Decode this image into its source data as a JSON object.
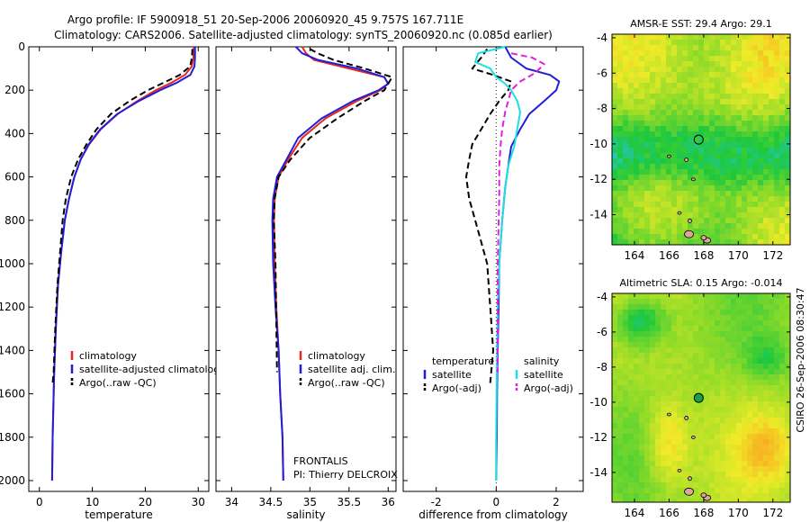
{
  "header": {
    "line1": "Argo profile: IF 5900918_51 20-Sep-2006 20060920_45 9.757S 167.711E",
    "line2": "Climatology: CARS2006. Satellite-adjusted climatology: synTS_20060920.nc (0.085d earlier)"
  },
  "credit": "CSIRO 26-Sep-2006 08:30:47",
  "colors": {
    "red": "#e8281e",
    "blue": "#1f1fd8",
    "black": "#000000",
    "cyan": "#1ee0e0",
    "magenta": "#e020e0"
  },
  "chart_data": [
    {
      "type": "line",
      "xlabel": "temperature",
      "ylabel": "",
      "xlim": [
        -2,
        32
      ],
      "ylim": [
        0,
        2050
      ],
      "y_reversed": true,
      "xticks": [
        0,
        10,
        20,
        30
      ],
      "yticks": [
        0,
        200,
        400,
        600,
        800,
        1000,
        1200,
        1400,
        1600,
        1800,
        2000
      ],
      "legend": {
        "position": "bottom-left",
        "entries": [
          "climatology",
          "satellite-adjusted climatology",
          "Argo(..raw -QC)"
        ]
      },
      "series": [
        {
          "name": "climatology",
          "color": "red",
          "dash": "solid",
          "x": [
            29.2,
            29.1,
            28.8,
            27.5,
            25.0,
            22.0,
            18.5,
            14.8,
            11.6,
            9.4,
            7.8,
            6.6,
            5.6,
            4.8,
            4.1,
            3.5,
            3.1,
            2.8,
            2.5,
            2.4
          ],
          "y": [
            0,
            50,
            90,
            130,
            165,
            200,
            250,
            310,
            380,
            450,
            520,
            600,
            700,
            800,
            950,
            1100,
            1300,
            1500,
            1800,
            2000
          ]
        },
        {
          "name": "satellite-adjusted climatology",
          "color": "blue",
          "dash": "solid",
          "x": [
            29.4,
            29.4,
            29.3,
            28.5,
            26.0,
            22.8,
            18.8,
            14.7,
            11.5,
            9.3,
            7.8,
            6.6,
            5.6,
            4.8,
            4.1,
            3.5,
            3.1,
            2.8,
            2.5,
            2.4
          ],
          "y": [
            0,
            50,
            90,
            130,
            165,
            200,
            250,
            310,
            380,
            450,
            520,
            600,
            700,
            800,
            950,
            1100,
            1300,
            1500,
            1800,
            2000
          ]
        },
        {
          "name": "Argo(..raw -QC)",
          "color": "black",
          "dash": "dash",
          "x": [
            28.9,
            28.8,
            28.5,
            26.5,
            23.5,
            20.5,
            17.0,
            13.5,
            10.8,
            8.9,
            7.3,
            6.0,
            5.0,
            4.4,
            3.9,
            3.4,
            3.0,
            2.7,
            2.5
          ],
          "y": [
            10,
            50,
            90,
            130,
            165,
            200,
            250,
            310,
            380,
            450,
            520,
            600,
            700,
            800,
            950,
            1100,
            1300,
            1500,
            1550
          ]
        }
      ]
    },
    {
      "type": "line",
      "xlabel": "salinity",
      "ylabel": "",
      "xlim": [
        33.8,
        36.1
      ],
      "ylim": [
        0,
        2050
      ],
      "y_reversed": true,
      "xticks": [
        34,
        34.5,
        35,
        35.5,
        36
      ],
      "tick_labels": [
        "34",
        "34.5",
        "35",
        "35.5",
        "36"
      ],
      "legend": {
        "position": "bottom-right",
        "entries": [
          "climatology",
          "satellite adj. clim.",
          "Argo(..raw -QC)"
        ]
      },
      "annotation": {
        "line1": "FRONTALIS",
        "line2": "PI: Thierry DELCROIX"
      },
      "series": [
        {
          "name": "climatology",
          "color": "red",
          "dash": "solid",
          "x": [
            34.9,
            34.95,
            35.05,
            35.5,
            35.95,
            36.0,
            35.9,
            35.6,
            35.2,
            34.9,
            34.72,
            34.6,
            34.55,
            34.54,
            34.55,
            34.57,
            34.6,
            34.62,
            34.65,
            34.66
          ],
          "y": [
            0,
            30,
            60,
            100,
            140,
            170,
            200,
            250,
            330,
            420,
            520,
            600,
            700,
            800,
            1000,
            1200,
            1400,
            1600,
            1800,
            2000
          ]
        },
        {
          "name": "satellite adj. clim.",
          "color": "blue",
          "dash": "solid",
          "x": [
            34.82,
            34.9,
            35.1,
            35.6,
            35.95,
            36.0,
            35.88,
            35.55,
            35.15,
            34.85,
            34.7,
            34.58,
            34.53,
            34.52,
            34.53,
            34.56,
            34.6,
            34.62,
            34.65,
            34.66
          ],
          "y": [
            0,
            30,
            60,
            100,
            140,
            170,
            200,
            250,
            330,
            420,
            520,
            600,
            700,
            800,
            1000,
            1200,
            1400,
            1600,
            1800,
            2000
          ]
        },
        {
          "name": "Argo(..raw -QC)",
          "color": "black",
          "dash": "dash",
          "x": [
            35.0,
            35.1,
            35.3,
            35.7,
            36.05,
            36.0,
            35.95,
            35.7,
            35.35,
            35.0,
            34.75,
            34.6,
            34.55,
            34.54,
            34.56,
            34.58
          ],
          "y": [
            10,
            30,
            60,
            100,
            140,
            170,
            200,
            250,
            330,
            420,
            520,
            600,
            700,
            800,
            1000,
            1500
          ]
        }
      ]
    },
    {
      "type": "line",
      "xlabel": "difference from climatology",
      "ylabel": "",
      "xlim": [
        -3.1,
        2.9
      ],
      "ylim": [
        0,
        2050
      ],
      "y_reversed": true,
      "xticks": [
        -2,
        0,
        2
      ],
      "legend": {
        "position": "bottom",
        "entries": [
          "temperature",
          "satellite",
          "Argo(-adj)",
          "salinity",
          "satellite",
          "Argo(-adj)"
        ]
      },
      "series": [
        {
          "name": "satellite",
          "group": "temperature",
          "color": "blue",
          "dash": "solid",
          "x": [
            0.3,
            0.5,
            1.0,
            1.8,
            2.1,
            2.0,
            1.6,
            1.1,
            0.8,
            0.5,
            0.4,
            0.3,
            0.2,
            0.1,
            0.08,
            0.05,
            0.03,
            0.02,
            0.0
          ],
          "y": [
            0,
            50,
            100,
            130,
            160,
            200,
            250,
            310,
            380,
            460,
            550,
            650,
            800,
            1000,
            1200,
            1400,
            1600,
            1800,
            2000
          ]
        },
        {
          "name": "Argo(-adj)",
          "group": "temperature",
          "color": "black",
          "dash": "dash",
          "x": [
            -0.3,
            -0.5,
            -0.8,
            -0.1,
            0.5,
            0.4,
            0.1,
            -0.2,
            -0.5,
            -0.8,
            -0.9,
            -1.0,
            -0.9,
            -0.7,
            -0.5,
            -0.3,
            -0.2,
            -0.1,
            -0.2
          ],
          "y": [
            10,
            50,
            100,
            130,
            160,
            200,
            250,
            310,
            380,
            450,
            520,
            600,
            700,
            800,
            900,
            1000,
            1200,
            1400,
            1550
          ]
        },
        {
          "name": "satellite",
          "group": "salinity",
          "color": "cyan",
          "dash": "solid",
          "x": [
            0.3,
            -0.6,
            -0.7,
            -0.2,
            0.0,
            0.3,
            0.5,
            0.7,
            0.8,
            0.7,
            0.6,
            0.4,
            0.3,
            0.2,
            0.1,
            0.05,
            0.02,
            0.0,
            0.0
          ],
          "y": [
            0,
            30,
            70,
            100,
            140,
            170,
            200,
            250,
            300,
            380,
            460,
            550,
            650,
            800,
            1000,
            1200,
            1500,
            1800,
            2000
          ]
        },
        {
          "name": "Argo(-adj)",
          "group": "salinity",
          "color": "magenta",
          "dash": "dash",
          "x": [
            0.5,
            1.2,
            1.6,
            1.3,
            0.8,
            0.5,
            0.4,
            0.3,
            0.2,
            0.15,
            0.1,
            0.1,
            0.05,
            0.05
          ],
          "y": [
            30,
            50,
            80,
            120,
            160,
            200,
            250,
            300,
            380,
            450,
            550,
            700,
            1000,
            1500
          ]
        }
      ]
    },
    {
      "type": "heatmap",
      "title": "AMSR-E SST: 29.4 Argo: 29.1",
      "xlim": [
        162.7,
        173.0
      ],
      "ylim": [
        -15.7,
        -3.8
      ],
      "xticks": [
        164,
        166,
        168,
        170,
        172
      ],
      "yticks": [
        -4,
        -6,
        -8,
        -10,
        -12,
        -14
      ],
      "marker": {
        "lon": 167.711,
        "lat": -9.757,
        "fill": "none"
      }
    },
    {
      "type": "heatmap",
      "title": "Altimetric SLA: 0.15 Argo: -0.014",
      "xlim": [
        162.7,
        173.0
      ],
      "ylim": [
        -15.7,
        -3.8
      ],
      "xticks": [
        164,
        166,
        168,
        170,
        172
      ],
      "yticks": [
        -4,
        -6,
        -8,
        -10,
        -12,
        -14
      ],
      "marker": {
        "lon": 167.711,
        "lat": -9.757,
        "fill": "green"
      }
    }
  ]
}
